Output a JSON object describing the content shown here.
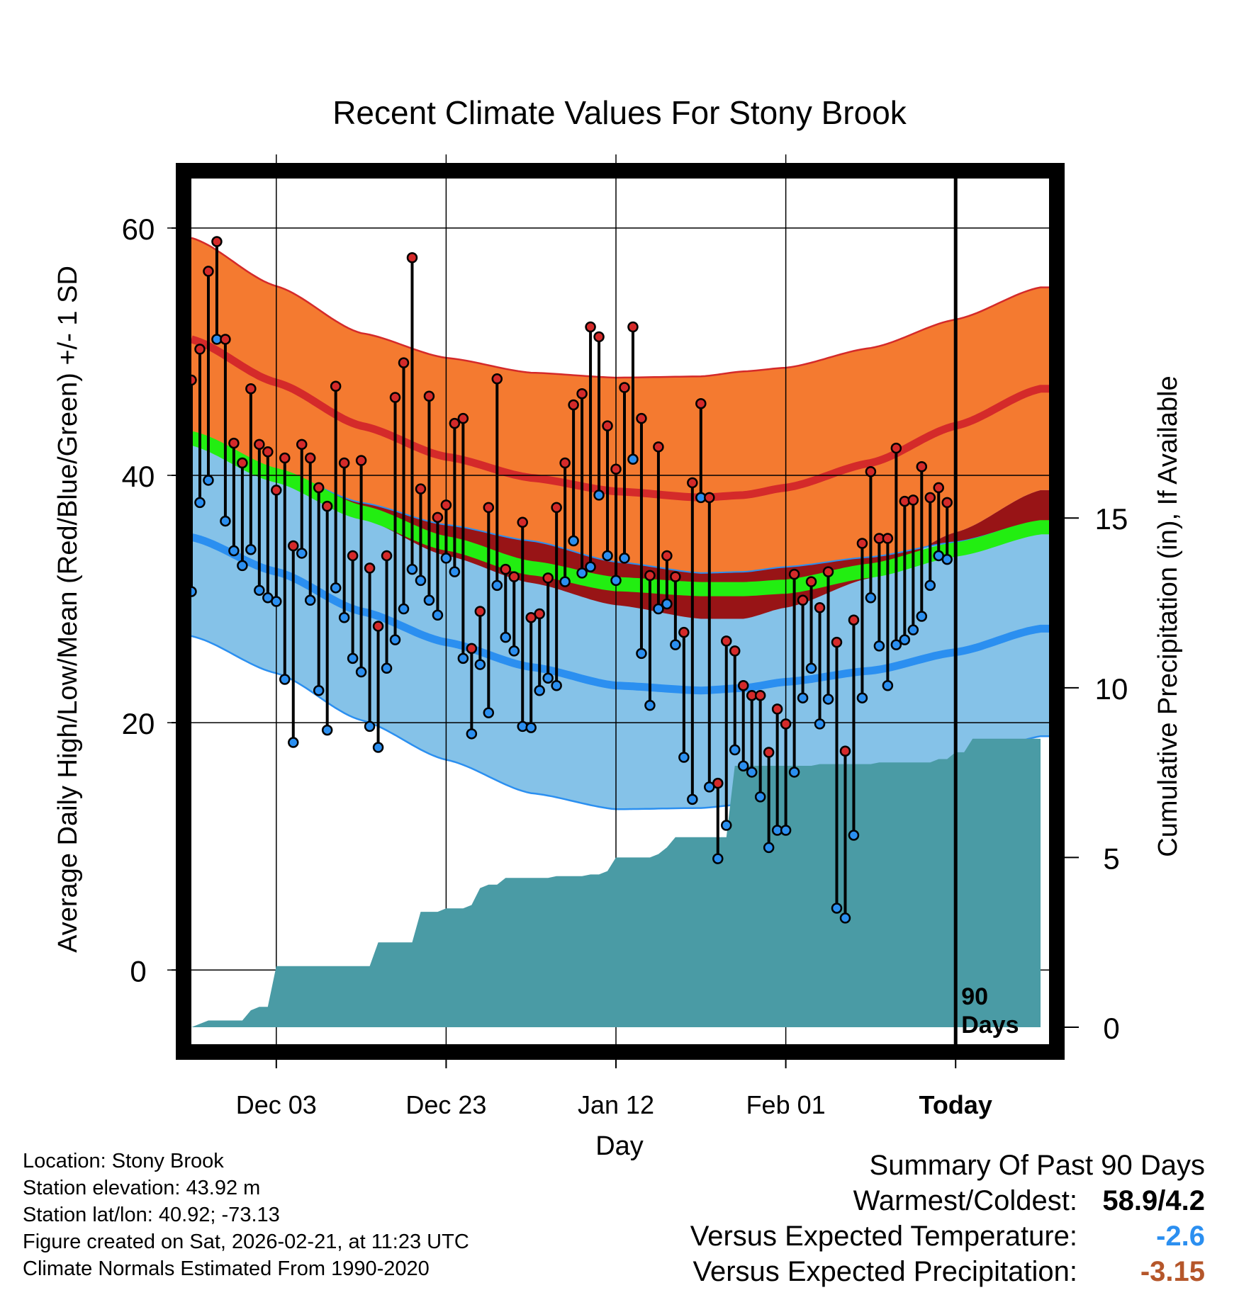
{
  "chart_data": {
    "type": "line",
    "title": "Recent Climate Values For Stony Brook",
    "xlabel": "Day",
    "ylabel": "Average Daily High/Low/Mean (Red/Blue/Green) +/- 1 SD",
    "y2label": "Cumulative Precipitation (in), If Available",
    "xlim": [
      0,
      101
    ],
    "ylim": [
      -6,
      64
    ],
    "y2lim": [
      -0.5,
      25
    ],
    "x_ticks": [
      {
        "x": 10,
        "label": "Dec 03"
      },
      {
        "x": 30,
        "label": "Dec 23"
      },
      {
        "x": 50,
        "label": "Jan 12"
      },
      {
        "x": 70,
        "label": "Feb 01"
      },
      {
        "x": 90,
        "label": "Today"
      }
    ],
    "y_ticks": [
      {
        "y": 0,
        "label": "0"
      },
      {
        "y": 20,
        "label": "20"
      },
      {
        "y": 40,
        "label": "40"
      },
      {
        "y": 60,
        "label": "60"
      }
    ],
    "y_minor_ticks": [
      10,
      30,
      50
    ],
    "y2_ticks": [
      {
        "y": 0,
        "label": "0"
      },
      {
        "y": 5,
        "label": "5"
      },
      {
        "y": 10,
        "label": "10"
      },
      {
        "y": 15,
        "label": "15"
      }
    ],
    "today_x": 90,
    "today_label": "90 Days",
    "normals": {
      "x": [
        0,
        10,
        20,
        30,
        40,
        50,
        60,
        65,
        70,
        80,
        90,
        100
      ],
      "high_mean": [
        51,
        47.5,
        44,
        41.5,
        39.8,
        38.7,
        38.2,
        38.4,
        39,
        41,
        44,
        47
      ],
      "high_sd": [
        8.2,
        7.8,
        7.5,
        8.0,
        8.5,
        9.2,
        9.8,
        10.0,
        9.7,
        9.3,
        8.6,
        8.2
      ],
      "low_mean": [
        35,
        32.2,
        29,
        26.5,
        24.5,
        23,
        22.6,
        22.8,
        23.3,
        24.2,
        25.7,
        27.6
      ],
      "low_sd": [
        8.0,
        8.2,
        8.8,
        9.5,
        10.2,
        10.0,
        9.5,
        9.4,
        9.3,
        9.2,
        8.9,
        8.7
      ],
      "mean_mean": [
        43,
        40,
        37,
        34.5,
        32.5,
        31.2,
        30.8,
        30.8,
        31.0,
        32.3,
        34.0,
        35.8
      ],
      "high_color": "#f47a30",
      "high_line_color": "#d42a2a",
      "low_color": "#85c2e8",
      "low_line_color": "#2b8ff0",
      "mean_color": "#22ee11",
      "overlap_color": "#981416"
    },
    "series": [
      {
        "name": "Daily High",
        "color": "#d42a2a",
        "values": [
          47.7,
          50.2,
          56.5,
          58.9,
          51.0,
          42.6,
          41.0,
          47.0,
          42.5,
          41.9,
          38.8,
          41.4,
          34.3,
          42.5,
          41.4,
          39.0,
          37.5,
          47.2,
          41.0,
          33.5,
          41.2,
          32.5,
          27.8,
          33.5,
          46.3,
          49.1,
          57.6,
          38.9,
          46.4,
          36.6,
          37.6,
          44.2,
          44.6,
          26.0,
          29.0,
          37.4,
          47.8,
          32.4,
          31.8,
          36.2,
          28.5,
          28.8,
          31.7,
          37.4,
          41.0,
          45.7,
          46.6,
          52.0,
          51.2,
          44.0,
          40.5,
          47.1,
          52.0,
          44.6,
          31.9,
          42.3,
          33.5,
          31.8,
          27.3,
          39.4,
          45.8,
          38.2,
          15.1,
          26.6,
          25.8,
          23.0,
          22.2,
          22.2,
          17.6,
          21.1,
          19.9,
          32.0,
          29.9,
          31.4,
          29.3,
          32.2,
          26.5,
          17.7,
          28.3,
          34.5,
          40.3,
          34.9,
          34.9,
          42.2,
          37.9,
          38.0,
          40.7,
          38.2,
          39.0,
          37.8
        ]
      },
      {
        "name": "Daily Low",
        "color": "#2b8ff0",
        "values": [
          30.6,
          37.8,
          39.6,
          51.0,
          36.3,
          33.9,
          32.7,
          34.0,
          30.7,
          30.1,
          29.8,
          23.5,
          18.4,
          33.7,
          29.9,
          22.6,
          19.4,
          30.9,
          28.5,
          25.2,
          24.1,
          19.7,
          18.0,
          24.4,
          26.7,
          29.2,
          32.4,
          31.5,
          29.9,
          28.7,
          33.3,
          32.2,
          25.2,
          19.1,
          24.7,
          20.8,
          31.1,
          26.9,
          25.8,
          19.7,
          19.6,
          22.6,
          23.6,
          23.0,
          31.4,
          34.7,
          32.1,
          32.6,
          38.4,
          33.5,
          31.5,
          33.3,
          41.3,
          25.6,
          21.4,
          29.2,
          29.6,
          26.3,
          17.2,
          13.8,
          38.2,
          14.8,
          9.0,
          11.7,
          17.8,
          16.5,
          16.0,
          14.0,
          9.9,
          11.3,
          11.3,
          16.0,
          22.0,
          24.4,
          19.9,
          21.9,
          5.0,
          4.2,
          10.9,
          22.0,
          30.1,
          26.2,
          23.0,
          26.3,
          26.7,
          27.5,
          28.6,
          31.1,
          33.5,
          33.2
        ]
      }
    ],
    "precip_cumulative": {
      "x": [
        0,
        1,
        2,
        3,
        4,
        5,
        6,
        7,
        8,
        9,
        10,
        11,
        12,
        13,
        14,
        15,
        16,
        17,
        18,
        19,
        20,
        21,
        22,
        23,
        24,
        25,
        26,
        27,
        28,
        29,
        30,
        31,
        32,
        33,
        34,
        35,
        36,
        37,
        38,
        39,
        40,
        41,
        42,
        43,
        44,
        45,
        46,
        47,
        48,
        49,
        50,
        51,
        52,
        53,
        54,
        55,
        56,
        57,
        58,
        59,
        60,
        61,
        62,
        63,
        64,
        65,
        66,
        67,
        68,
        69,
        70,
        71,
        72,
        73,
        74,
        75,
        76,
        77,
        78,
        79,
        80,
        81,
        82,
        83,
        84,
        85,
        86,
        87,
        88,
        89,
        90,
        91,
        92,
        93,
        94,
        95,
        96,
        97,
        98,
        99,
        100
      ],
      "values": [
        0,
        0.1,
        0.2,
        0.2,
        0.2,
        0.2,
        0.2,
        0.5,
        0.6,
        0.6,
        1.8,
        1.8,
        1.8,
        1.8,
        1.8,
        1.8,
        1.8,
        1.8,
        1.8,
        1.8,
        1.8,
        1.8,
        2.5,
        2.5,
        2.5,
        2.5,
        2.5,
        3.4,
        3.4,
        3.4,
        3.5,
        3.5,
        3.5,
        3.6,
        4.1,
        4.2,
        4.2,
        4.4,
        4.4,
        4.4,
        4.4,
        4.4,
        4.4,
        4.45,
        4.45,
        4.45,
        4.45,
        4.5,
        4.5,
        4.6,
        5.0,
        5.0,
        5.0,
        5.0,
        5.0,
        5.1,
        5.3,
        5.6,
        5.6,
        5.6,
        5.6,
        5.6,
        5.6,
        5.6,
        7.7,
        7.7,
        7.7,
        7.7,
        7.7,
        7.7,
        7.7,
        7.7,
        7.7,
        7.7,
        7.75,
        7.75,
        7.75,
        7.75,
        7.75,
        7.75,
        7.75,
        7.8,
        7.8,
        7.8,
        7.8,
        7.8,
        7.8,
        7.8,
        7.9,
        7.9,
        8.1,
        8.1,
        8.5,
        8.5,
        8.5,
        8.5,
        8.5,
        8.5,
        8.5,
        8.5,
        8.5
      ],
      "color": "#4a9ba5"
    }
  },
  "info": {
    "location": "Location: Stony Brook",
    "elevation": "Station elevation: 43.92 m",
    "latlon": "Station lat/lon: 40.92; -73.13",
    "created": "Figure created on Sat, 2026-02-21, at 11:23 UTC",
    "normals": "Climate Normals Estimated From 1990-2020"
  },
  "summary": {
    "title": "Summary Of Past 90 Days",
    "warmest_coldest_label": "Warmest/Coldest:",
    "warmest_coldest_value": "58.9/4.2",
    "vs_temp_label": "Versus Expected Temperature:",
    "vs_temp_value": "-2.6",
    "vs_temp_color": "#2b8ff0",
    "vs_precip_label": "Versus Expected Precipitation:",
    "vs_precip_value": "-3.15",
    "vs_precip_color": "#b5562a"
  }
}
